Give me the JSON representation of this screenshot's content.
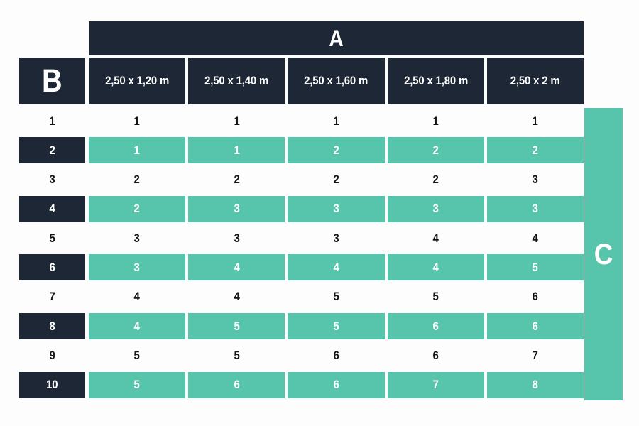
{
  "chart_data": {
    "type": "table",
    "column_axis_label": "A",
    "row_axis_label": "B",
    "result_axis_label": "C",
    "column_headers": [
      "2,50 x 1,20 m",
      "2,50 x 1,40 m",
      "2,50 x 1,60 m",
      "2,50 x 1,80 m",
      "2,50 x 2 m"
    ],
    "rows": [
      {
        "label": "1",
        "values": [
          "1",
          "1",
          "1",
          "1",
          "1"
        ],
        "highlighted": false
      },
      {
        "label": "2",
        "values": [
          "1",
          "1",
          "2",
          "2",
          "2"
        ],
        "highlighted": true
      },
      {
        "label": "3",
        "values": [
          "2",
          "2",
          "2",
          "2",
          "3"
        ],
        "highlighted": false
      },
      {
        "label": "4",
        "values": [
          "2",
          "3",
          "3",
          "3",
          "3"
        ],
        "highlighted": true
      },
      {
        "label": "5",
        "values": [
          "3",
          "3",
          "3",
          "4",
          "4"
        ],
        "highlighted": false
      },
      {
        "label": "6",
        "values": [
          "3",
          "4",
          "4",
          "4",
          "5"
        ],
        "highlighted": true
      },
      {
        "label": "7",
        "values": [
          "4",
          "4",
          "5",
          "5",
          "6"
        ],
        "highlighted": false
      },
      {
        "label": "8",
        "values": [
          "4",
          "5",
          "5",
          "6",
          "6"
        ],
        "highlighted": true
      },
      {
        "label": "9",
        "values": [
          "5",
          "5",
          "6",
          "6",
          "7"
        ],
        "highlighted": false
      },
      {
        "label": "10",
        "values": [
          "5",
          "6",
          "6",
          "7",
          "8"
        ],
        "highlighted": true
      }
    ]
  },
  "colors": {
    "dark_navy": "#1d2735",
    "teal": "#56c5ac",
    "page_background": "#fdfdfd",
    "light_text": "#ffffff",
    "dark_text": "#141414"
  }
}
